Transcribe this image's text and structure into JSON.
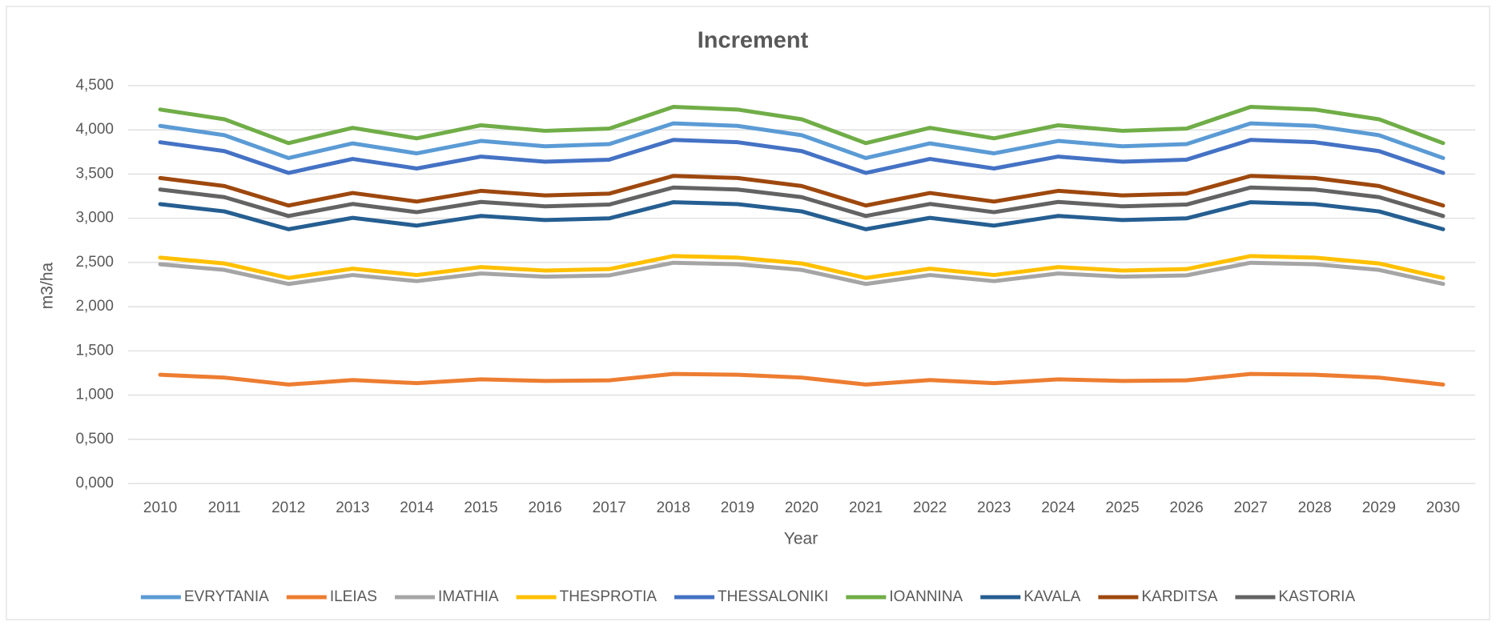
{
  "chart_data": {
    "type": "line",
    "title": "Increment",
    "x_label": "Year",
    "y_label": "m3/ha",
    "categories": [
      "2010",
      "2011",
      "2012",
      "2013",
      "2014",
      "2015",
      "2016",
      "2017",
      "2018",
      "2019",
      "2020",
      "2021",
      "2022",
      "2023",
      "2024",
      "2025",
      "2026",
      "2027",
      "2028",
      "2029",
      "2030"
    ],
    "series": [
      {
        "name": "EVRYTANIA",
        "color": "#5b9bd5",
        "values": [
          4045,
          3940,
          3681,
          3847,
          3734,
          3875,
          3814,
          3839,
          4073,
          4045,
          3940,
          3681,
          3847,
          3734,
          3875,
          3814,
          3839,
          4073,
          4045,
          3940,
          3681
        ]
      },
      {
        "name": "ILEIAS",
        "color": "#ed7d31",
        "values": [
          1230,
          1198,
          1119,
          1170,
          1135,
          1178,
          1160,
          1167,
          1239,
          1230,
          1198,
          1119,
          1170,
          1135,
          1178,
          1160,
          1167,
          1239,
          1230,
          1198,
          1119
        ]
      },
      {
        "name": "IMATHIA",
        "color": "#a5a5a5",
        "values": [
          2480,
          2416,
          2257,
          2358,
          2289,
          2376,
          2339,
          2354,
          2497,
          2480,
          2416,
          2257,
          2358,
          2289,
          2376,
          2339,
          2354,
          2497,
          2480,
          2416,
          2257
        ]
      },
      {
        "name": "THESPROTIA",
        "color": "#ffc000",
        "values": [
          2555,
          2489,
          2325,
          2430,
          2358,
          2448,
          2409,
          2425,
          2573,
          2555,
          2489,
          2325,
          2430,
          2358,
          2448,
          2409,
          2425,
          2573,
          2555,
          2489,
          2325
        ]
      },
      {
        "name": "THESSALONIKI",
        "color": "#4472c4",
        "values": [
          3860,
          3760,
          3513,
          3671,
          3563,
          3698,
          3640,
          3663,
          3887,
          3860,
          3760,
          3513,
          3671,
          3563,
          3698,
          3640,
          3663,
          3887,
          3860,
          3760,
          3513
        ]
      },
      {
        "name": "IOANNINA",
        "color": "#70ad47",
        "values": [
          4230,
          4120,
          3850,
          4023,
          3904,
          4052,
          3989,
          4014,
          4260,
          4230,
          4120,
          3850,
          4023,
          3904,
          4052,
          3989,
          4014,
          4260,
          4230,
          4120,
          3850
        ]
      },
      {
        "name": "KAVALA",
        "color": "#255e91",
        "values": [
          3160,
          3078,
          2876,
          3005,
          2917,
          3027,
          2980,
          2999,
          3182,
          3160,
          3078,
          2876,
          3005,
          2917,
          3027,
          2980,
          2999,
          3182,
          3160,
          3078,
          2876
        ]
      },
      {
        "name": "KARDITSA",
        "color": "#9e480e",
        "values": [
          3455,
          3365,
          3144,
          3286,
          3189,
          3310,
          3258,
          3279,
          3479,
          3455,
          3365,
          3144,
          3286,
          3189,
          3310,
          3258,
          3279,
          3479,
          3455,
          3365,
          3144
        ]
      },
      {
        "name": "KASTORIA",
        "color": "#636363",
        "values": [
          3325,
          3239,
          3026,
          3162,
          3069,
          3185,
          3135,
          3155,
          3348,
          3325,
          3239,
          3026,
          3162,
          3069,
          3185,
          3135,
          3155,
          3348,
          3325,
          3239,
          3026
        ]
      }
    ],
    "ylim": [
      0,
      4500
    ],
    "yticks": [
      {
        "value": 0,
        "label": "0,000"
      },
      {
        "value": 500,
        "label": "0,500"
      },
      {
        "value": 1000,
        "label": "1,000"
      },
      {
        "value": 1500,
        "label": "1,500"
      },
      {
        "value": 2000,
        "label": "2,000"
      },
      {
        "value": 2500,
        "label": "2,500"
      },
      {
        "value": 3000,
        "label": "3,000"
      },
      {
        "value": 3500,
        "label": "3,500"
      },
      {
        "value": 4000,
        "label": "4,000"
      },
      {
        "value": 4500,
        "label": "4,500"
      }
    ],
    "grid": true,
    "legend": "bottom"
  }
}
